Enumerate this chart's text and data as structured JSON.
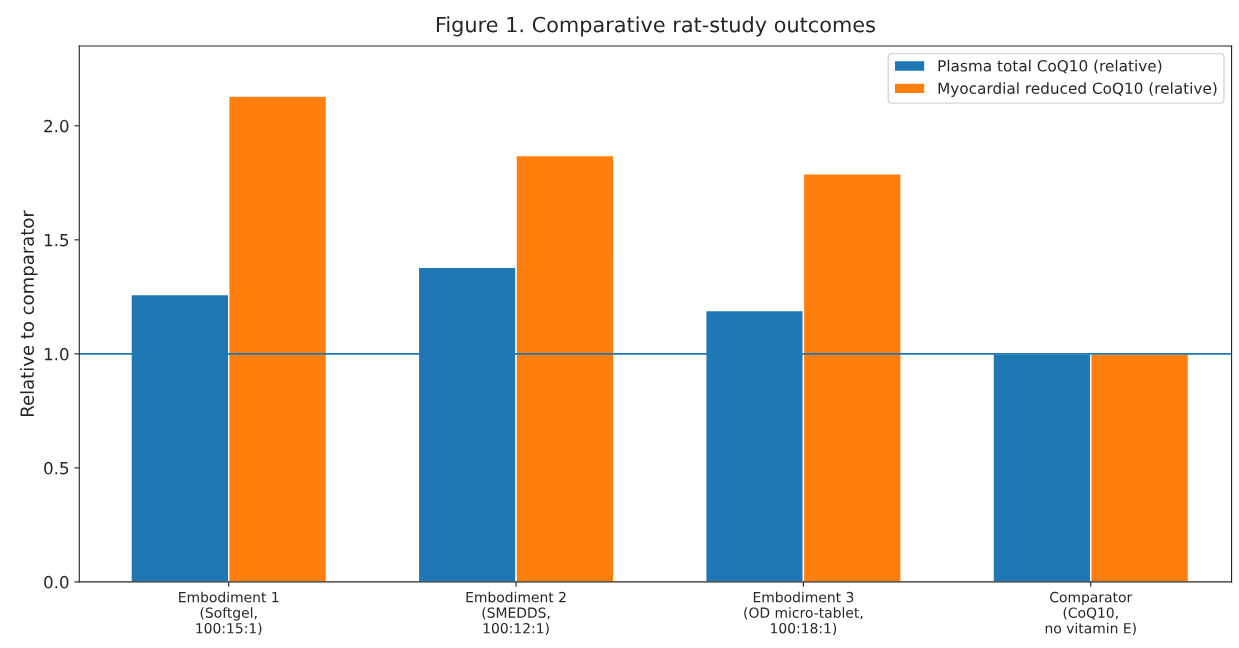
{
  "chart_data": {
    "type": "bar",
    "title": "Figure 1. Comparative rat-study outcomes",
    "ylabel": "Relative to comparator",
    "categories": [
      "Embodiment 1\n(Softgel,\n100:15:1)",
      "Embodiment 2\n(SMEDDS,\n100:12:1)",
      "Embodiment 3\n(OD micro-tablet,\n100:18:1)",
      "Comparator\n(CoQ10,\nno vitamin E)"
    ],
    "series": [
      {
        "name": "Plasma total CoQ10 (relative)",
        "color": "#1f77b4",
        "values": [
          1.26,
          1.38,
          1.19,
          1.0
        ]
      },
      {
        "name": "Myocardial reduced CoQ10 (relative)",
        "color": "#ff7f0e",
        "values": [
          2.13,
          1.87,
          1.79,
          1.0
        ]
      }
    ],
    "ylim": [
      0,
      2.35
    ],
    "yticks": [
      {
        "value": 0,
        "label": "0.0"
      },
      {
        "value": 0.5,
        "label": "0.5"
      },
      {
        "value": 1,
        "label": "1.0"
      },
      {
        "value": 1.5,
        "label": "1.5"
      },
      {
        "value": 2,
        "label": "2.0"
      }
    ],
    "ref_lines": [
      {
        "axis": "y",
        "value": 1,
        "color": "#1f77b4",
        "line_style": "solid"
      }
    ],
    "legend": "top right",
    "grid": false
  }
}
